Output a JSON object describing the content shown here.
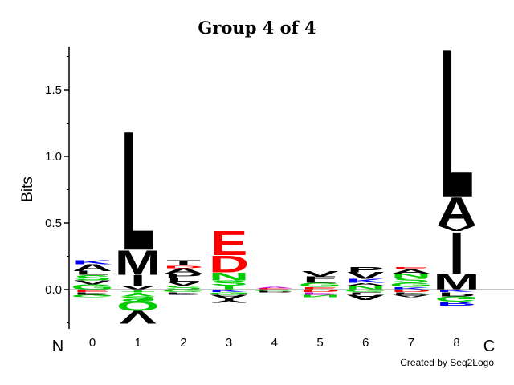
{
  "chart_data": {
    "type": "sequence-logo",
    "title": "Group 4 of 4",
    "ylabel": "Bits",
    "ylim": [
      -0.3,
      1.8
    ],
    "yticks": [
      0.0,
      0.5,
      1.0,
      1.5
    ],
    "ytick_labels": [
      "0.0",
      "0.5",
      "1.0",
      "1.5"
    ],
    "positions": [
      "0",
      "1",
      "2",
      "3",
      "4",
      "5",
      "6",
      "7",
      "8"
    ],
    "n_terminal_label": "N",
    "c_terminal_label": "C",
    "credit": "Created by Seq2Logo",
    "grid": false,
    "colors": {
      "hydrophobic": "#000000",
      "polar": "#00cc00",
      "basic": "#0000ff",
      "acidic": "#ff0000",
      "other": "#cc00cc"
    },
    "columns": [
      {
        "position": "0",
        "positive": [
          [
            "G",
            0.04,
            "polar"
          ],
          [
            "V",
            0.03,
            "hydrophobic"
          ],
          [
            "S",
            0.04,
            "polar"
          ],
          [
            "L",
            0.03,
            "hydrophobic"
          ],
          [
            "A",
            0.05,
            "hydrophobic"
          ],
          [
            "K",
            0.03,
            "basic"
          ]
        ],
        "negative": [
          [
            "E",
            0.02,
            "acidic"
          ],
          [
            "P",
            0.02,
            "hydrophobic"
          ],
          [
            "G",
            0.02,
            "polar"
          ]
        ]
      },
      {
        "position": "1",
        "positive": [
          [
            "V",
            0.03,
            "hydrophobic"
          ],
          [
            "I",
            0.08,
            "hydrophobic"
          ],
          [
            "M",
            0.19,
            "hydrophobic"
          ],
          [
            "L",
            0.92,
            "hydrophobic"
          ]
        ],
        "negative": [
          [
            "T",
            0.02,
            "polar"
          ],
          [
            "Y",
            0.03,
            "polar"
          ],
          [
            "S",
            0.04,
            "polar"
          ],
          [
            "Q",
            0.07,
            "polar"
          ],
          [
            "V",
            0.1,
            "hydrophobic"
          ]
        ]
      },
      {
        "position": "2",
        "positive": [
          [
            "S",
            0.03,
            "polar"
          ],
          [
            "V",
            0.03,
            "hydrophobic"
          ],
          [
            "L",
            0.03,
            "hydrophobic"
          ],
          [
            "P",
            0.03,
            "hydrophobic"
          ],
          [
            "A",
            0.04,
            "hydrophobic"
          ],
          [
            "D",
            0.02,
            "acidic"
          ],
          [
            "T",
            0.04,
            "hydrophobic"
          ]
        ],
        "negative": [
          [
            "G",
            0.02,
            "polar"
          ],
          [
            "P",
            0.02,
            "hydrophobic"
          ]
        ]
      },
      {
        "position": "3",
        "positive": [
          [
            "T",
            0.03,
            "polar"
          ],
          [
            "S",
            0.04,
            "polar"
          ],
          [
            "N",
            0.06,
            "polar"
          ],
          [
            "D",
            0.13,
            "acidic"
          ],
          [
            "E",
            0.19,
            "acidic"
          ]
        ],
        "negative": [
          [
            "K",
            0.02,
            "basic"
          ],
          [
            "G",
            0.02,
            "polar"
          ],
          [
            "A",
            0.03,
            "hydrophobic"
          ],
          [
            "Y",
            0.03,
            "hydrophobic"
          ]
        ]
      },
      {
        "position": "4",
        "positive": [
          [
            "E",
            0.01,
            "acidic"
          ],
          [
            "A",
            0.01,
            "other"
          ]
        ],
        "negative": [
          [
            "G",
            0.01,
            "polar"
          ],
          [
            "P",
            0.01,
            "hydrophobic"
          ]
        ]
      },
      {
        "position": "5",
        "positive": [
          [
            "E",
            0.02,
            "acidic"
          ],
          [
            "G",
            0.03,
            "polar"
          ],
          [
            "L",
            0.02,
            "hydrophobic"
          ],
          [
            "F",
            0.03,
            "hydrophobic"
          ],
          [
            "V",
            0.04,
            "hydrophobic"
          ]
        ],
        "negative": [
          [
            "D",
            0.02,
            "acidic"
          ],
          [
            "P",
            0.02,
            "other"
          ],
          [
            "N",
            0.02,
            "polar"
          ]
        ]
      },
      {
        "position": "6",
        "positive": [
          [
            "N",
            0.03,
            "polar"
          ],
          [
            "A",
            0.02,
            "hydrophobic"
          ],
          [
            "K",
            0.03,
            "basic"
          ],
          [
            "V",
            0.05,
            "hydrophobic"
          ],
          [
            "P",
            0.04,
            "hydrophobic"
          ]
        ],
        "negative": [
          [
            "G",
            0.02,
            "polar"
          ],
          [
            "L",
            0.02,
            "hydrophobic"
          ],
          [
            "A",
            0.04,
            "hydrophobic"
          ]
        ]
      },
      {
        "position": "7",
        "positive": [
          [
            "K",
            0.02,
            "basic"
          ],
          [
            "G",
            0.03,
            "polar"
          ],
          [
            "S",
            0.04,
            "polar"
          ],
          [
            "N",
            0.03,
            "polar"
          ],
          [
            "A",
            0.03,
            "hydrophobic"
          ],
          [
            "E",
            0.02,
            "acidic"
          ]
        ],
        "negative": [
          [
            "D",
            0.02,
            "acidic"
          ],
          [
            "P",
            0.02,
            "hydrophobic"
          ],
          [
            "A",
            0.02,
            "hydrophobic"
          ]
        ]
      },
      {
        "position": "8",
        "positive": [
          [
            "M",
            0.12,
            "hydrophobic"
          ],
          [
            "I",
            0.32,
            "hydrophobic"
          ],
          [
            "V",
            0.04,
            "hydrophobic"
          ],
          [
            "A",
            0.22,
            "hydrophobic"
          ],
          [
            "L",
            1.15,
            "hydrophobic"
          ]
        ],
        "negative": [
          [
            "K",
            0.02,
            "basic"
          ],
          [
            "P",
            0.03,
            "hydrophobic"
          ],
          [
            "G",
            0.04,
            "polar"
          ],
          [
            "R",
            0.03,
            "basic"
          ]
        ]
      }
    ]
  }
}
